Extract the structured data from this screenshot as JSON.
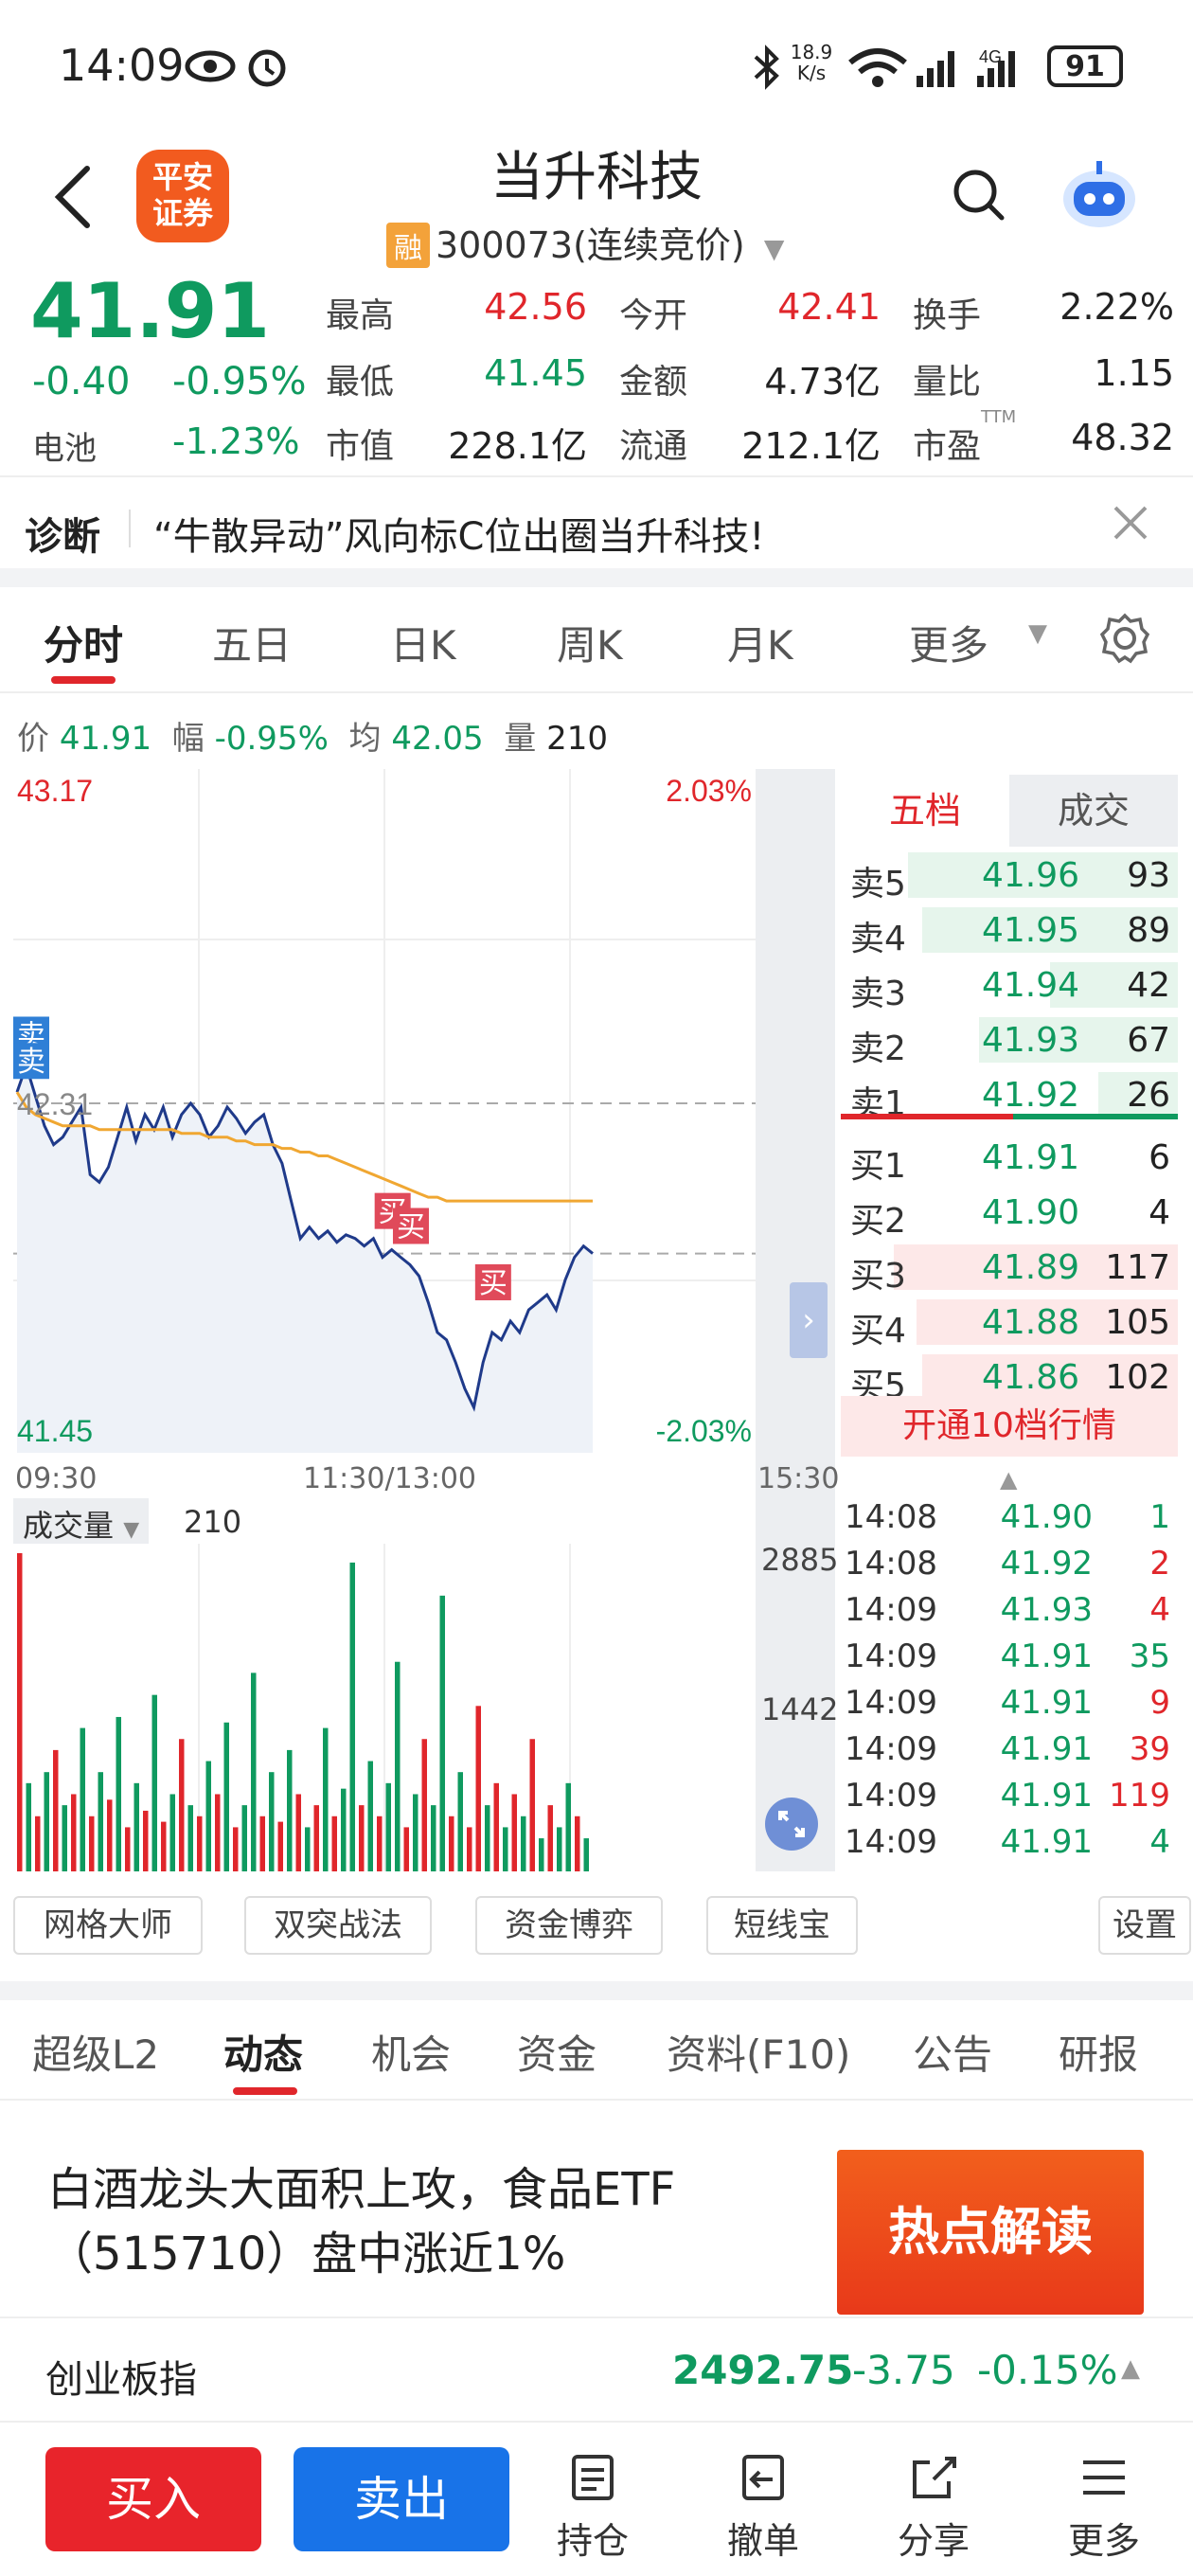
{
  "status": {
    "time": "14:09",
    "net_speed": "18.9\nK/s",
    "battery": "91"
  },
  "header": {
    "logo_line1": "平安",
    "logo_line2": "证券",
    "stock_name": "当升科技",
    "rong_badge": "融",
    "stock_code": "300073",
    "trade_mode": "(连续竞价)"
  },
  "quote": {
    "price": "41.91",
    "change": "-0.40",
    "change_pct": "-0.95%",
    "sector_name": "电池",
    "sector_pct": "-1.23%",
    "fields": [
      {
        "label": "最高",
        "value": "42.56",
        "color": "red"
      },
      {
        "label": "今开",
        "value": "42.41",
        "color": "red"
      },
      {
        "label": "换手",
        "value": "2.22%",
        "color": "dark"
      },
      {
        "label": "最低",
        "value": "41.45",
        "color": "green"
      },
      {
        "label": "金额",
        "value": "4.73亿",
        "color": "dark"
      },
      {
        "label": "量比",
        "value": "1.15",
        "color": "dark"
      },
      {
        "label": "市值",
        "value": "228.1亿",
        "color": "dark"
      },
      {
        "label": "流通",
        "value": "212.1亿",
        "color": "dark"
      },
      {
        "label": "市盈",
        "value": "48.32",
        "color": "dark"
      }
    ],
    "pe_sup": "TTM"
  },
  "diagnosis": {
    "title": "诊断",
    "text": "“牛散异动”风向标C位出圈当升科技!"
  },
  "chart_tabs": [
    "分时",
    "五日",
    "日K",
    "周K",
    "月K",
    "更多"
  ],
  "info_line": {
    "price_label": "价",
    "price": "41.91",
    "range_label": "幅",
    "range": "-0.95%",
    "avg_label": "均",
    "avg": "42.05",
    "vol_label": "量",
    "vol": "210"
  },
  "chart_data": [
    {
      "type": "line",
      "title": "",
      "y_max_label": "43.17",
      "y_min_label": "41.45",
      "y_mid_label": "42.31",
      "pct_max_label": "2.03%",
      "pct_min_label": "-2.03%",
      "ylim": [
        41.45,
        43.17
      ],
      "x_labels": [
        "09:30",
        "11:30/13:00",
        "15:30"
      ],
      "series": [
        {
          "name": "价",
          "color": "#1f3a8a",
          "values": [
            42.34,
            42.41,
            42.33,
            42.25,
            42.2,
            42.22,
            42.26,
            42.3,
            42.12,
            42.1,
            42.14,
            42.22,
            42.3,
            42.21,
            42.28,
            42.24,
            42.3,
            42.22,
            42.28,
            42.31,
            42.28,
            42.22,
            42.25,
            42.3,
            42.27,
            42.23,
            42.26,
            42.28,
            42.2,
            42.15,
            42.05,
            41.95,
            41.98,
            41.95,
            41.97,
            41.94,
            41.96,
            41.95,
            41.93,
            41.95,
            41.9,
            41.92,
            41.9,
            41.88,
            41.85,
            41.78,
            41.7,
            41.68,
            41.62,
            41.55,
            41.5,
            41.62,
            41.7,
            41.68,
            41.73,
            41.7,
            41.76,
            41.78,
            41.8,
            41.76,
            41.84,
            41.9,
            41.93,
            41.91
          ]
        },
        {
          "name": "均",
          "color": "#f0a732",
          "values": [
            42.34,
            42.3,
            42.28,
            42.27,
            42.26,
            42.25,
            42.25,
            42.25,
            42.25,
            42.24,
            42.24,
            42.24,
            42.24,
            42.24,
            42.24,
            42.24,
            42.24,
            42.24,
            42.23,
            42.23,
            42.23,
            42.22,
            42.22,
            42.22,
            42.21,
            42.21,
            42.2,
            42.2,
            42.2,
            42.19,
            42.19,
            42.18,
            42.18,
            42.17,
            42.17,
            42.16,
            42.15,
            42.14,
            42.13,
            42.12,
            42.11,
            42.1,
            42.09,
            42.08,
            42.07,
            42.06,
            42.06,
            42.05,
            42.05,
            42.05,
            42.05,
            42.05,
            42.05,
            42.05,
            42.05,
            42.05,
            42.05,
            42.05,
            42.05,
            42.05,
            42.05,
            42.05,
            42.05,
            42.05
          ]
        }
      ],
      "markers": [
        {
          "text": "卖",
          "index": 0,
          "value": 42.45,
          "kind": "sell"
        },
        {
          "text": "卖",
          "index": 0,
          "value": 42.38,
          "kind": "sell"
        },
        {
          "text": "买",
          "index": 41,
          "value": 41.92,
          "kind": "buy"
        },
        {
          "text": "买",
          "index": 43,
          "value": 41.88,
          "kind": "buy"
        },
        {
          "text": "买",
          "index": 52,
          "value": 41.73,
          "kind": "buy"
        }
      ]
    },
    {
      "type": "bar",
      "title": "成交量",
      "current": "210",
      "y_labels": [
        "2885",
        "1442"
      ],
      "ylim": [
        0,
        2885
      ],
      "values": [
        {
          "v": 2900,
          "c": "r"
        },
        {
          "v": 800,
          "c": "g"
        },
        {
          "v": 500,
          "c": "r"
        },
        {
          "v": 900,
          "c": "g"
        },
        {
          "v": 1100,
          "c": "r"
        },
        {
          "v": 600,
          "c": "g"
        },
        {
          "v": 700,
          "c": "r"
        },
        {
          "v": 1300,
          "c": "g"
        },
        {
          "v": 500,
          "c": "r"
        },
        {
          "v": 900,
          "c": "g"
        },
        {
          "v": 650,
          "c": "r"
        },
        {
          "v": 1400,
          "c": "g"
        },
        {
          "v": 400,
          "c": "r"
        },
        {
          "v": 800,
          "c": "g"
        },
        {
          "v": 550,
          "c": "r"
        },
        {
          "v": 1600,
          "c": "g"
        },
        {
          "v": 450,
          "c": "r"
        },
        {
          "v": 700,
          "c": "g"
        },
        {
          "v": 1200,
          "c": "r"
        },
        {
          "v": 600,
          "c": "g"
        },
        {
          "v": 500,
          "c": "r"
        },
        {
          "v": 1000,
          "c": "g"
        },
        {
          "v": 700,
          "c": "r"
        },
        {
          "v": 1350,
          "c": "g"
        },
        {
          "v": 400,
          "c": "r"
        },
        {
          "v": 600,
          "c": "g"
        },
        {
          "v": 1800,
          "c": "g"
        },
        {
          "v": 500,
          "c": "r"
        },
        {
          "v": 900,
          "c": "g"
        },
        {
          "v": 450,
          "c": "r"
        },
        {
          "v": 1100,
          "c": "g"
        },
        {
          "v": 700,
          "c": "r"
        },
        {
          "v": 400,
          "c": "g"
        },
        {
          "v": 600,
          "c": "r"
        },
        {
          "v": 1300,
          "c": "g"
        },
        {
          "v": 500,
          "c": "r"
        },
        {
          "v": 750,
          "c": "g"
        },
        {
          "v": 2800,
          "c": "g"
        },
        {
          "v": 600,
          "c": "r"
        },
        {
          "v": 1000,
          "c": "g"
        },
        {
          "v": 500,
          "c": "r"
        },
        {
          "v": 800,
          "c": "g"
        },
        {
          "v": 1900,
          "c": "g"
        },
        {
          "v": 400,
          "c": "r"
        },
        {
          "v": 700,
          "c": "g"
        },
        {
          "v": 1200,
          "c": "r"
        },
        {
          "v": 600,
          "c": "g"
        },
        {
          "v": 2500,
          "c": "g"
        },
        {
          "v": 500,
          "c": "r"
        },
        {
          "v": 900,
          "c": "g"
        },
        {
          "v": 400,
          "c": "r"
        },
        {
          "v": 1500,
          "c": "r"
        },
        {
          "v": 600,
          "c": "g"
        },
        {
          "v": 800,
          "c": "r"
        },
        {
          "v": 400,
          "c": "g"
        },
        {
          "v": 700,
          "c": "r"
        },
        {
          "v": 500,
          "c": "g"
        },
        {
          "v": 1200,
          "c": "r"
        },
        {
          "v": 300,
          "c": "g"
        },
        {
          "v": 600,
          "c": "r"
        },
        {
          "v": 400,
          "c": "g"
        },
        {
          "v": 800,
          "c": "g"
        },
        {
          "v": 500,
          "c": "r"
        },
        {
          "v": 300,
          "c": "g"
        }
      ]
    }
  ],
  "orderbook": {
    "tab_active": "五档",
    "tab_other": "成交",
    "sells": [
      {
        "label": "卖5",
        "price": "41.96",
        "vol": "93",
        "bar": 0.95
      },
      {
        "label": "卖4",
        "price": "41.95",
        "vol": "89",
        "bar": 0.9
      },
      {
        "label": "卖3",
        "price": "41.94",
        "vol": "42",
        "bar": 0.45
      },
      {
        "label": "卖2",
        "price": "41.93",
        "vol": "67",
        "bar": 0.7
      },
      {
        "label": "卖1",
        "price": "41.92",
        "vol": "26",
        "bar": 0.28
      }
    ],
    "buys": [
      {
        "label": "买1",
        "price": "41.91",
        "vol": "6",
        "bar": 0.0
      },
      {
        "label": "买2",
        "price": "41.90",
        "vol": "4",
        "bar": 0.0
      },
      {
        "label": "买3",
        "price": "41.89",
        "vol": "117",
        "bar": 1.0
      },
      {
        "label": "买4",
        "price": "41.88",
        "vol": "105",
        "bar": 0.92
      },
      {
        "label": "买5",
        "price": "41.86",
        "vol": "102",
        "bar": 0.9
      }
    ],
    "open_l10": "开通10档行情"
  },
  "trades": [
    {
      "time": "14:08",
      "price": "41.90",
      "vol": "1",
      "c": "green"
    },
    {
      "time": "14:08",
      "price": "41.92",
      "vol": "2",
      "c": "red"
    },
    {
      "time": "14:09",
      "price": "41.93",
      "vol": "4",
      "c": "red"
    },
    {
      "time": "14:09",
      "price": "41.91",
      "vol": "35",
      "c": "green"
    },
    {
      "time": "14:09",
      "price": "41.91",
      "vol": "9",
      "c": "red"
    },
    {
      "time": "14:09",
      "price": "41.91",
      "vol": "39",
      "c": "red"
    },
    {
      "time": "14:09",
      "price": "41.91",
      "vol": "119",
      "c": "red"
    },
    {
      "time": "14:09",
      "price": "41.91",
      "vol": "4",
      "c": "green"
    }
  ],
  "tools": [
    "网格大师",
    "双突战法",
    "资金博弈",
    "短线宝",
    "设置"
  ],
  "news_tabs": [
    "超级L2",
    "动态",
    "机会",
    "资金",
    "资料(F10)",
    "公告",
    "研报"
  ],
  "news": {
    "title": "白酒龙头大面积上攻，食品ETF（515710）盘中涨近1%",
    "banner": "热点解读"
  },
  "index_bar": {
    "name": "创业板指",
    "value": "2492.75",
    "change": "-3.75",
    "pct": "-0.15%"
  },
  "bottom": {
    "buy": "买入",
    "sell": "卖出",
    "items": [
      "持仓",
      "撤单",
      "分享",
      "更多"
    ]
  },
  "colors": {
    "up": "#e0262b",
    "down": "#0f9a5f",
    "accent": "#e0262b",
    "sell_btn": "#1873e8"
  }
}
